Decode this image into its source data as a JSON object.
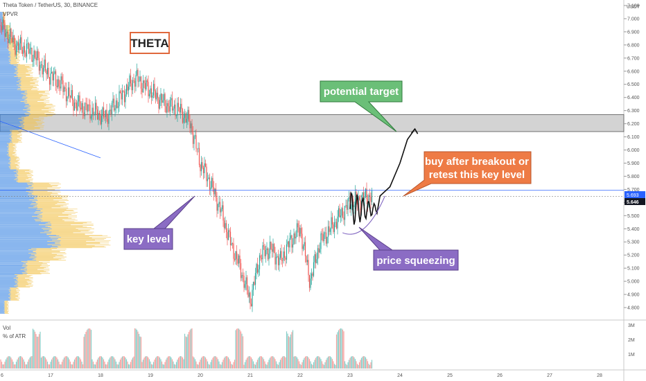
{
  "header": {
    "symbol_line": "Theta Token / TetherUS, 30, BINANCE",
    "indicator": "VPVR",
    "currency": "USDT"
  },
  "volume_pane": {
    "label": "Vol",
    "sublabel": "% of ATR",
    "axis_ticks": [
      "3M",
      "2M",
      "1M"
    ]
  },
  "logo_box": {
    "text": "THETA",
    "border_color": "#e0683c"
  },
  "annotations": {
    "target": {
      "text": "potential target",
      "color": "#6bbf78"
    },
    "buy": {
      "lines": [
        "buy after breakout or",
        "retest this key level"
      ],
      "color": "#ee7b45"
    },
    "key_level": {
      "text": "key level",
      "color": "#8b6cc4"
    },
    "squeeze": {
      "text": "price squeezing",
      "color": "#8b6cc4"
    }
  },
  "chart_data": {
    "type": "candlestick",
    "y_axis_ticks": [
      "7.100",
      "7.000",
      "6.900",
      "6.800",
      "6.700",
      "6.600",
      "6.500",
      "6.400",
      "6.300",
      "6.200",
      "6.100",
      "6.000",
      "5.900",
      "5.800",
      "5.700",
      "5.600",
      "5.500",
      "5.400",
      "5.300",
      "5.200",
      "5.100",
      "5.000",
      "4.900",
      "4.800"
    ],
    "x_axis_ticks": [
      "6",
      "17",
      "18",
      "19",
      "20",
      "21",
      "22",
      "23",
      "24",
      "25",
      "26",
      "27",
      "28"
    ],
    "ylim": [
      4.7,
      7.15
    ],
    "price_labels": {
      "key_level": "5.693",
      "last": "5.646"
    },
    "resistance_zone": [
      6.14,
      6.27
    ],
    "key_level": 5.693,
    "last_price": 5.646,
    "trendline": {
      "from": [
        "6",
        6.22
      ],
      "to": [
        "18",
        5.94
      ]
    },
    "price_path_days": [
      16.0,
      16.3,
      16.6,
      16.9,
      17.2,
      17.5,
      17.8,
      18.1,
      18.4,
      18.7,
      19.0,
      19.3,
      19.6,
      19.8,
      20.0,
      20.2,
      20.4,
      20.6,
      20.8,
      21.0,
      21.2,
      21.4,
      21.6,
      21.8,
      22.0,
      22.2,
      22.4,
      22.6,
      22.8,
      23.0,
      23.2,
      23.4
    ],
    "price_path_close": [
      6.95,
      6.8,
      6.75,
      6.6,
      6.5,
      6.35,
      6.3,
      6.25,
      6.4,
      6.55,
      6.45,
      6.35,
      6.3,
      6.2,
      5.9,
      5.75,
      5.55,
      5.3,
      5.1,
      4.85,
      5.2,
      5.25,
      5.15,
      5.3,
      5.4,
      5.0,
      5.3,
      5.4,
      5.5,
      5.6,
      5.62,
      5.65
    ],
    "projection_path": [
      [
        23.6,
        5.65
      ],
      [
        23.8,
        5.72
      ],
      [
        24.0,
        5.9
      ],
      [
        24.15,
        6.08
      ],
      [
        24.3,
        6.16
      ]
    ],
    "vpvr_bins": [
      7.0,
      6.9,
      6.8,
      6.7,
      6.6,
      6.5,
      6.4,
      6.3,
      6.2,
      6.1,
      6.0,
      5.9,
      5.8,
      5.7,
      5.6,
      5.5,
      5.4,
      5.3,
      5.2,
      5.1,
      5.0,
      4.9,
      4.8
    ],
    "vpvr_values": [
      0.05,
      0.1,
      0.15,
      0.18,
      0.3,
      0.35,
      0.45,
      0.5,
      0.4,
      0.2,
      0.15,
      0.18,
      0.3,
      0.55,
      0.62,
      0.7,
      0.85,
      1.0,
      0.6,
      0.45,
      0.3,
      0.18,
      0.08
    ]
  }
}
